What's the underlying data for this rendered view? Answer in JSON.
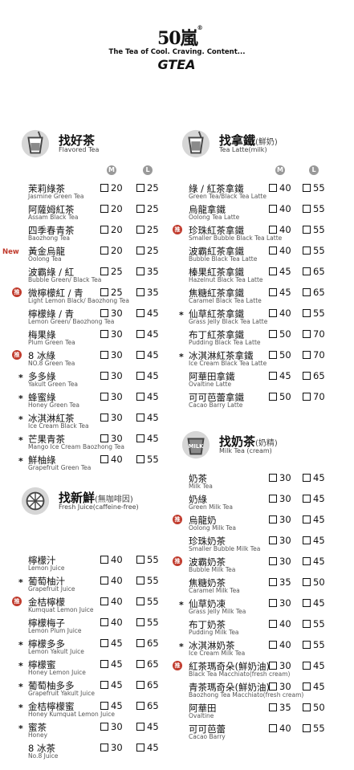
{
  "brand": {
    "logo_text": "50嵐",
    "tagline": "The Tea of Cool. Craving. Content...",
    "logo_bottom": "GTEA",
    "reg": "®"
  },
  "size_labels": {
    "m": "M",
    "l": "L"
  },
  "badges": {
    "new": "New",
    "rec": "推",
    "star": "*"
  },
  "sections": {
    "flavored": {
      "title": "找好茶",
      "title_suffix": "",
      "subtitle": "Flavored Tea",
      "items": [
        {
          "zh": "茉莉綠茶",
          "en": "Jasmine Green Tea",
          "m": "20",
          "l": "25",
          "mark": ""
        },
        {
          "zh": "阿薩姆紅茶",
          "en": "Assam Black Tea",
          "m": "20",
          "l": "25",
          "mark": ""
        },
        {
          "zh": "四季春青茶",
          "en": "Baozhong Tea",
          "m": "20",
          "l": "25",
          "mark": ""
        },
        {
          "zh": "黃金烏龍",
          "en": "Oolong Tea",
          "m": "20",
          "l": "25",
          "mark": "new"
        },
        {
          "zh": "波霸綠 / 紅",
          "en": "Bubble Green/ Black Tea",
          "m": "25",
          "l": "35",
          "mark": ""
        },
        {
          "zh": "微檸檬紅 / 青",
          "en": "Light Lemon Black/ Baozhong Tea",
          "m": "25",
          "l": "35",
          "mark": "rec"
        },
        {
          "zh": "檸檬綠 / 青",
          "en": "Lemon Green/ Baozhong Tea",
          "m": "30",
          "l": "45",
          "mark": ""
        },
        {
          "zh": "梅果綠",
          "en": "Plum Green Tea",
          "m": "30",
          "l": "45",
          "mark": ""
        },
        {
          "zh": "8 冰綠",
          "en": "NO.8 Green Tea",
          "m": "30",
          "l": "45",
          "mark": "rec"
        },
        {
          "zh": "多多綠",
          "en": "Yakult Green Tea",
          "m": "30",
          "l": "45",
          "mark": "star"
        },
        {
          "zh": "蜂蜜綠",
          "en": "Honey Green Tea",
          "m": "30",
          "l": "45",
          "mark": "star"
        },
        {
          "zh": "冰淇淋紅茶",
          "en": "Ice Cream Black Tea",
          "m": "30",
          "l": "45",
          "mark": "star"
        },
        {
          "zh": "芒果青茶",
          "en": "Mango Ice Cream Baozhong Tea",
          "m": "30",
          "l": "45",
          "mark": "star"
        },
        {
          "zh": "鮮柚綠",
          "en": "Grapefruit Green Tea",
          "m": "40",
          "l": "55",
          "mark": "star"
        }
      ]
    },
    "fresh": {
      "title": "找新鮮",
      "title_suffix": "(無咖啡因)",
      "subtitle": "Fresh Juice(caffeine-free)",
      "items": [
        {
          "zh": "檸檬汁",
          "en": "Lemon Juice",
          "m": "40",
          "l": "55",
          "mark": ""
        },
        {
          "zh": "葡萄柚汁",
          "en": "Grapefruit Juice",
          "m": "40",
          "l": "55",
          "mark": "star"
        },
        {
          "zh": "金桔檸檬",
          "en": "Kumquat Lemon Juice",
          "m": "40",
          "l": "55",
          "mark": "rec"
        },
        {
          "zh": "檸檬梅子",
          "en": "Lemon Plum Juice",
          "m": "40",
          "l": "55",
          "mark": ""
        },
        {
          "zh": "檸檬多多",
          "en": "Lemon Yakult Juice",
          "m": "45",
          "l": "65",
          "mark": "star"
        },
        {
          "zh": "檸檬蜜",
          "en": "Honey Lemon Juice",
          "m": "45",
          "l": "65",
          "mark": "star"
        },
        {
          "zh": "葡萄柚多多",
          "en": "Grapefruit Yakult Juice",
          "m": "45",
          "l": "65",
          "mark": "star"
        },
        {
          "zh": "金桔檸檬蜜",
          "en": "Honey Kumquat Lemon Juice",
          "m": "45",
          "l": "65",
          "mark": "star"
        },
        {
          "zh": "蜜茶",
          "en": "Honey",
          "m": "30",
          "l": "45",
          "mark": "star"
        },
        {
          "zh": "8 冰茶",
          "en": "No.8 Juice",
          "m": "30",
          "l": "45",
          "mark": ""
        }
      ]
    },
    "latte": {
      "title": "找拿鐵",
      "title_suffix": "(鮮奶)",
      "subtitle": "Tea Latte(milk)",
      "items": [
        {
          "zh": "綠 / 紅茶拿鐵",
          "en": "Green Tea/Black Tea Latte",
          "m": "40",
          "l": "55",
          "mark": ""
        },
        {
          "zh": "烏龍拿鐵",
          "en": "Oolong Tea Latte",
          "m": "40",
          "l": "55",
          "mark": ""
        },
        {
          "zh": "珍珠紅茶拿鐵",
          "en": "Smaller Bubble Black Tea Latte",
          "m": "40",
          "l": "55",
          "mark": "rec"
        },
        {
          "zh": "波霸紅茶拿鐵",
          "en": "Bubble Black Tea Latte",
          "m": "40",
          "l": "55",
          "mark": ""
        },
        {
          "zh": "榛果紅茶拿鐵",
          "en": "Hazelnut Black Tea Latte",
          "m": "45",
          "l": "65",
          "mark": ""
        },
        {
          "zh": "焦糖紅茶拿鐵",
          "en": "Caramel Black Tea Latte",
          "m": "45",
          "l": "65",
          "mark": ""
        },
        {
          "zh": "仙草紅茶拿鐵",
          "en": "Grass Jelly Black Tea Latte",
          "m": "40",
          "l": "55",
          "mark": "star"
        },
        {
          "zh": "布丁紅茶拿鐵",
          "en": "Pudding Black Tea Latte",
          "m": "50",
          "l": "70",
          "mark": ""
        },
        {
          "zh": "冰淇淋紅茶拿鐵",
          "en": "Ice Cream Black Tea Latte",
          "m": "50",
          "l": "70",
          "mark": "star"
        },
        {
          "zh": "阿華田拿鐵",
          "en": "Ovaltine Latte",
          "m": "45",
          "l": "65",
          "mark": ""
        },
        {
          "zh": "可可芭蕾拿鐵",
          "en": "Cacao Barry Latte",
          "m": "50",
          "l": "70",
          "mark": ""
        }
      ]
    },
    "milk": {
      "title": "找奶茶",
      "title_suffix": "(奶精)",
      "subtitle": "Milk Tea (cream)",
      "icon_label": "MILK",
      "items": [
        {
          "zh": "奶茶",
          "en": "Milk Tea",
          "m": "30",
          "l": "45",
          "mark": ""
        },
        {
          "zh": "奶綠",
          "en": "Green Milk Tea",
          "m": "30",
          "l": "45",
          "mark": ""
        },
        {
          "zh": "烏龍奶",
          "en": "Oolong Milk Tea",
          "m": "30",
          "l": "45",
          "mark": "rec"
        },
        {
          "zh": "珍珠奶茶",
          "en": "Smaller Bubble Milk Tea",
          "m": "30",
          "l": "45",
          "mark": ""
        },
        {
          "zh": "波霸奶茶",
          "en": "Bubble Milk Tea",
          "m": "30",
          "l": "45",
          "mark": "rec"
        },
        {
          "zh": "焦糖奶茶",
          "en": "Caramel Milk Tea",
          "m": "35",
          "l": "50",
          "mark": ""
        },
        {
          "zh": "仙草奶凍",
          "en": "Grass Jelly Milk Tea",
          "m": "30",
          "l": "45",
          "mark": "star"
        },
        {
          "zh": "布丁奶茶",
          "en": "Pudding Milk Tea",
          "m": "40",
          "l": "55",
          "mark": ""
        },
        {
          "zh": "冰淇淋奶茶",
          "en": "Ice Cream Milk Tea",
          "m": "40",
          "l": "55",
          "mark": "star"
        },
        {
          "zh": "紅茶瑪奇朵(鮮奶油)",
          "en": "Black Tea Macchiato(fresh cream)",
          "m": "30",
          "l": "45",
          "mark": "rec"
        },
        {
          "zh": "青茶瑪奇朵(鮮奶油)",
          "en": "Baozhong Tea Macchiato(fresh cream)",
          "m": "30",
          "l": "45",
          "mark": ""
        },
        {
          "zh": "阿華田",
          "en": "Ovaltine",
          "m": "35",
          "l": "50",
          "mark": ""
        },
        {
          "zh": "可可芭蕾",
          "en": "Cacao Barry",
          "m": "40",
          "l": "55",
          "mark": ""
        }
      ]
    }
  }
}
